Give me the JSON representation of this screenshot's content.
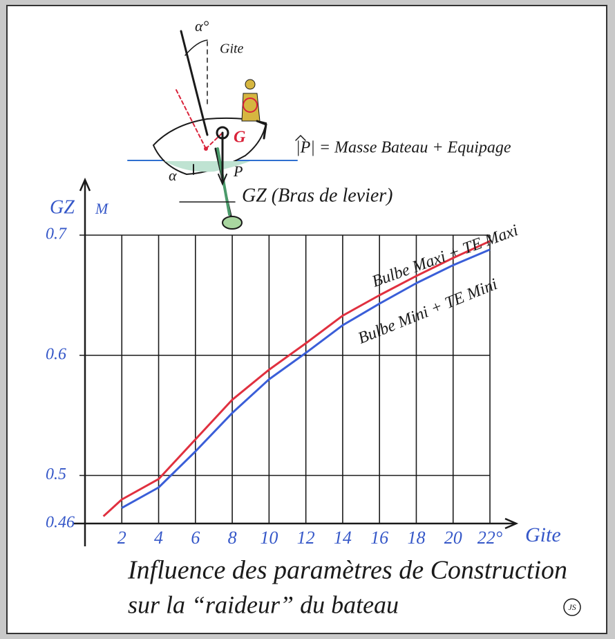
{
  "chart_data": {
    "type": "line",
    "title": "Influence des paramètres de Construction",
    "subtitle": "sur la “raideur” du bateau",
    "xlabel": "Gite",
    "ylabel": "GZ",
    "yunit": "M",
    "x": [
      1,
      2,
      4,
      6,
      8,
      10,
      12,
      14,
      16,
      18,
      20,
      22
    ],
    "series": [
      {
        "name": "Bulbe Maxi + TE Maxi",
        "color": "#e0303f",
        "values": [
          0.466,
          0.48,
          0.497,
          0.53,
          0.563,
          0.588,
          0.61,
          0.633,
          0.65,
          0.666,
          0.681,
          0.695
        ]
      },
      {
        "name": "Bulbe Mini + TE Mini",
        "color": "#3a5ed8",
        "values": [
          null,
          0.473,
          0.49,
          0.52,
          0.552,
          0.58,
          0.602,
          0.625,
          0.643,
          0.66,
          0.675,
          0.688
        ]
      }
    ],
    "xlim": [
      0,
      22
    ],
    "xticks": [
      2,
      4,
      6,
      8,
      10,
      12,
      14,
      16,
      18,
      20,
      {
        "value": 22,
        "label": "22°"
      }
    ],
    "ylim": [
      0.46,
      0.7
    ],
    "yticks": [
      {
        "value": 0.46,
        "label": "0.46"
      },
      {
        "value": 0.5,
        "label": "0.5"
      },
      {
        "value": 0.6,
        "label": "0.6"
      },
      {
        "value": 0.7,
        "label": "0.7"
      }
    ],
    "grid": true,
    "annotations": [
      "α°",
      "Gite",
      "G",
      "P",
      "α",
      "|P| = Masse Bateau + Equipage",
      "GZ (Bras de levier)",
      "JS"
    ]
  }
}
